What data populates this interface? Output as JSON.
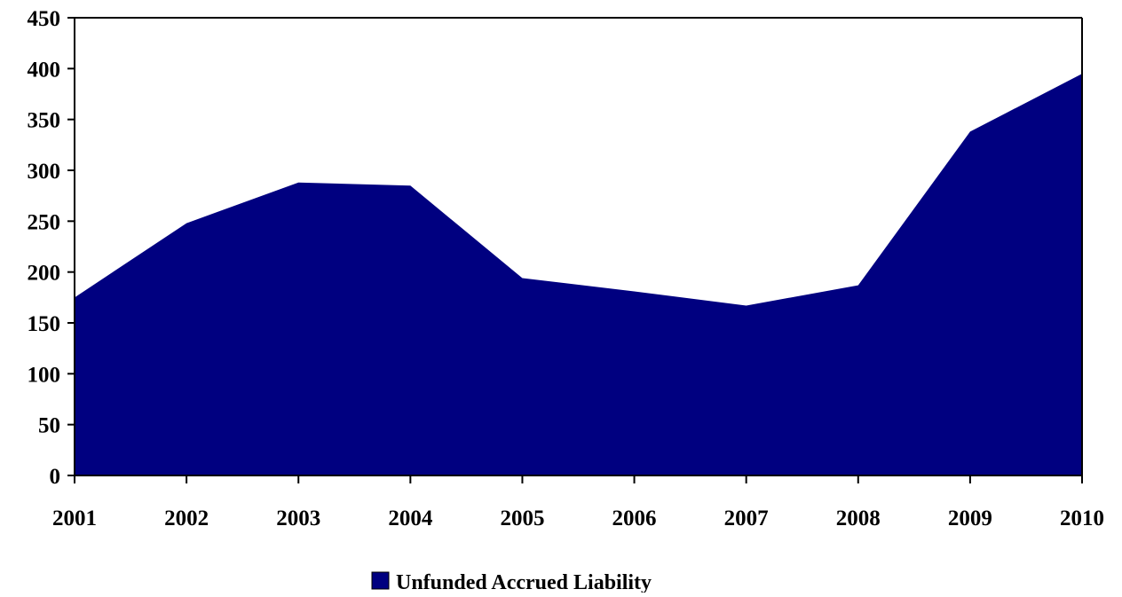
{
  "chart_data": {
    "type": "area",
    "title": "",
    "xlabel": "",
    "ylabel": "",
    "categories": [
      "2001",
      "2002",
      "2003",
      "2004",
      "2005",
      "2006",
      "2007",
      "2008",
      "2009",
      "2010"
    ],
    "series": [
      {
        "name": "Unfunded Accrued Liability",
        "values": [
          175,
          248,
          288,
          285,
          194,
          181,
          167,
          187,
          338,
          395
        ],
        "color": "#000080"
      }
    ],
    "ylim": [
      0,
      450
    ],
    "yticks": [
      "0",
      "50",
      "100",
      "150",
      "200",
      "250",
      "300",
      "350",
      "400",
      "450"
    ],
    "grid": false,
    "legend_position": "bottom-center"
  }
}
